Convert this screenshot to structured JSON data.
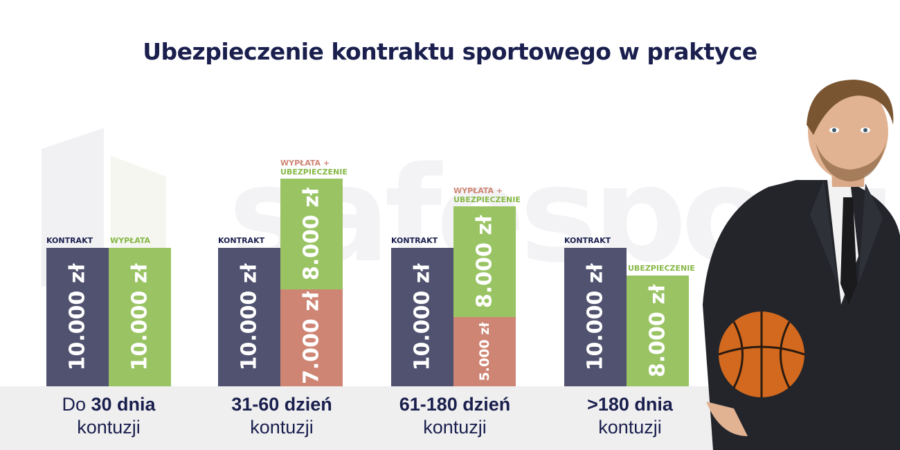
{
  "title": "Ubezpieczenie kontraktu sportowego w praktyce",
  "watermark": "safesport",
  "colors": {
    "title": "#1a1f4e",
    "kontrakt": "#50526f",
    "ubezpieczenie": "#9ac464",
    "wyplata": "#cf8574",
    "label_wyplata": "#cf8574",
    "label_ubezpieczenie": "#86b845"
  },
  "chart_data": {
    "type": "bar",
    "stacked": true,
    "ylim": [
      0,
      17000
    ],
    "groups": [
      {
        "label_prefix": "Do ",
        "label_bold": "30 dnia",
        "label_line2": "kontuzji",
        "bars": [
          {
            "header": "KONTRAKT",
            "segments": [
              {
                "value": 10000,
                "text": "10.000 zł",
                "color": "#50526f"
              }
            ]
          },
          {
            "header": "WYPŁATA",
            "header_color": "#86b845",
            "segments": [
              {
                "value": 10000,
                "text": "10.000 zł",
                "color": "#9ac464"
              }
            ]
          }
        ]
      },
      {
        "label_prefix": "",
        "label_bold": "31-60 dzień",
        "label_line2": "kontuzji",
        "bars": [
          {
            "header": "KONTRAKT",
            "segments": [
              {
                "value": 10000,
                "text": "10.000 zł",
                "color": "#50526f"
              }
            ]
          },
          {
            "header_line1": "WYPŁATA +",
            "header_line2": "UBEZPIECZENIE",
            "segments": [
              {
                "value": 7000,
                "text": "7.000 zł",
                "color": "#cf8574"
              },
              {
                "value": 8000,
                "text": "8.000 zł",
                "color": "#9ac464"
              }
            ]
          }
        ]
      },
      {
        "label_prefix": "",
        "label_bold": "61-180 dzień",
        "label_line2": "kontuzji",
        "bars": [
          {
            "header": "KONTRAKT",
            "segments": [
              {
                "value": 10000,
                "text": "10.000 zł",
                "color": "#50526f"
              }
            ]
          },
          {
            "header_line1": "WYPŁATA +",
            "header_line2": "UBEZPIECZENIE",
            "segments": [
              {
                "value": 5000,
                "text": "5.000 zł",
                "color": "#cf8574"
              },
              {
                "value": 8000,
                "text": "8.000 zł",
                "color": "#9ac464"
              }
            ]
          }
        ]
      },
      {
        "label_prefix": "",
        "label_bold": ">180 dnia",
        "label_line2": "kontuzji",
        "bars": [
          {
            "header": "KONTRAKT",
            "segments": [
              {
                "value": 10000,
                "text": "10.000 zł",
                "color": "#50526f"
              }
            ]
          },
          {
            "header": "UBEZPIECZENIE",
            "header_color": "#86b845",
            "segments": [
              {
                "value": 8000,
                "text": "8.000 zł",
                "color": "#9ac464"
              }
            ]
          }
        ]
      }
    ]
  }
}
